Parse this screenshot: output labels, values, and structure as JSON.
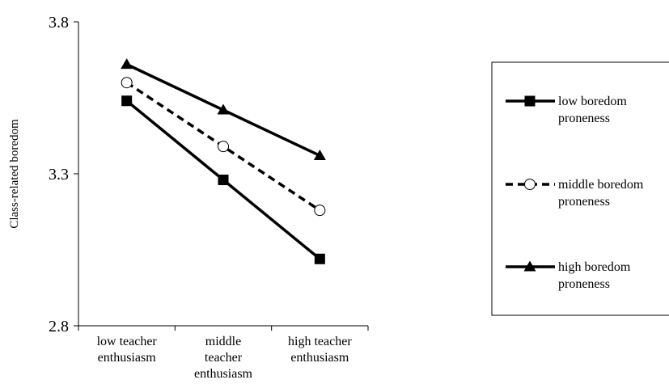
{
  "chart_data": {
    "type": "line",
    "title": "",
    "xlabel": "",
    "ylabel": "Class-related boredom",
    "ylim": [
      2.8,
      3.8
    ],
    "yticks": [
      "2.8",
      "3.3",
      "3.8"
    ],
    "categories": [
      [
        "low teacher",
        "enthusiasm"
      ],
      [
        "middle",
        "teacher",
        "enthusiasm"
      ],
      [
        "high teacher",
        "enthusiasm"
      ]
    ],
    "grid": false,
    "legend_position": "right",
    "series": [
      {
        "name": [
          "low boredom",
          "proneness"
        ],
        "values": [
          3.54,
          3.28,
          3.02
        ],
        "marker": "square",
        "dash": "solid",
        "color": "#000000"
      },
      {
        "name": [
          "middle boredom",
          "proneness"
        ],
        "values": [
          3.6,
          3.39,
          3.18
        ],
        "marker": "circle-open",
        "dash": "dashed",
        "color": "#000000"
      },
      {
        "name": [
          "high boredom",
          "proneness"
        ],
        "values": [
          3.66,
          3.51,
          3.36
        ],
        "marker": "triangle",
        "dash": "solid",
        "color": "#000000"
      }
    ]
  }
}
